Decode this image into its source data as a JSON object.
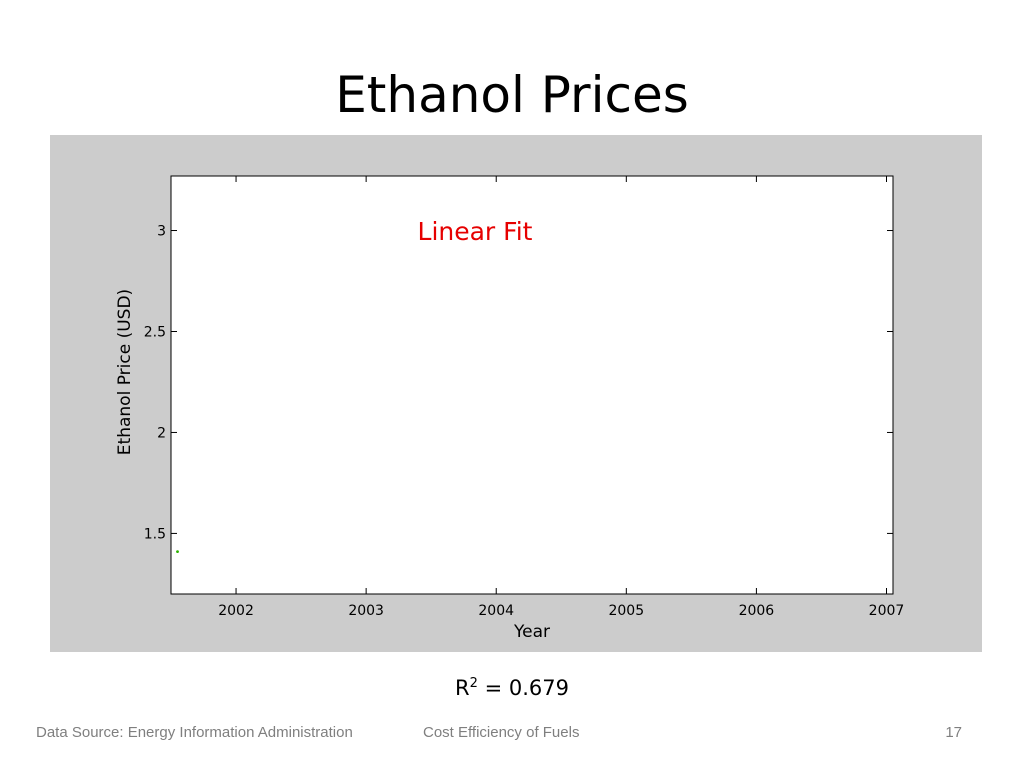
{
  "slide": {
    "title": "Ethanol Prices",
    "r2_label": "R",
    "r2_sup": "2",
    "r2_value": " = 0.679",
    "footer_left": "Data Source: Energy Information Administration",
    "footer_center": "Cost Efficiency of Fuels",
    "page_number": "17"
  },
  "colors": {
    "figure_background": "#cccccc",
    "plot_background": "#ffffff",
    "annotation": "#e60000",
    "point": "#2db300"
  },
  "chart_data": {
    "type": "scatter",
    "title": "",
    "annotation": "Linear Fit",
    "xlabel": "Year",
    "ylabel": "Ethanol Price (USD)",
    "xlim": [
      2001.5,
      2007.05
    ],
    "ylim": [
      1.2,
      3.27
    ],
    "xticks": [
      2002,
      2003,
      2004,
      2005,
      2006,
      2007
    ],
    "yticks": [
      1.5,
      2,
      2.5,
      3
    ],
    "ytick_labels": [
      "1.5",
      "2",
      "2.5",
      "3"
    ],
    "grid": false,
    "series": [
      {
        "x": [
          2001.55
        ],
        "y": [
          1.41
        ]
      }
    ]
  }
}
